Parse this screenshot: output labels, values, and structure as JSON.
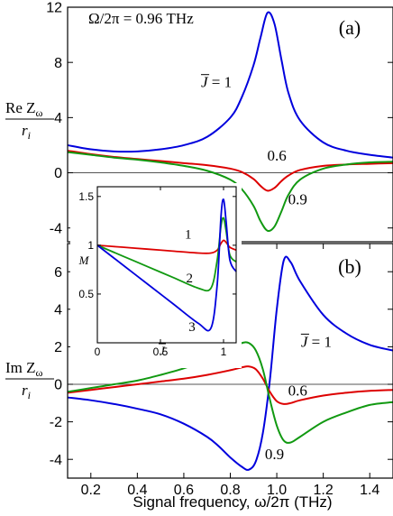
{
  "chart_data": [
    {
      "panel": "a",
      "type": "line",
      "panel_label": "(a)",
      "annotation": "Ω/2π = 0.96 THz",
      "ylabel_top": "Re Z",
      "ylabel_sub": "ω",
      "ylabel_bottom": "r",
      "ylabel_bottom_sub": "i",
      "xlim": [
        0.1,
        1.5
      ],
      "ylim": [
        -5,
        12
      ],
      "yticks": [
        -4,
        0,
        4,
        8,
        12
      ],
      "zero_line": true,
      "series": [
        {
          "name": "J̄ = 1",
          "color": "#0000dd",
          "x": [
            0.1,
            0.2,
            0.3,
            0.4,
            0.5,
            0.6,
            0.7,
            0.8,
            0.85,
            0.9,
            0.93,
            0.96,
            0.99,
            1.02,
            1.05,
            1.1,
            1.2,
            1.3,
            1.4,
            1.5
          ],
          "y": [
            2.0,
            1.7,
            1.55,
            1.55,
            1.7,
            2.0,
            2.6,
            4.0,
            5.5,
            7.8,
            9.8,
            11.6,
            10.8,
            8.2,
            5.8,
            3.8,
            2.2,
            1.6,
            1.3,
            1.1
          ]
        },
        {
          "name": "0.6",
          "color": "#dd0000",
          "x": [
            0.1,
            0.2,
            0.3,
            0.4,
            0.5,
            0.6,
            0.7,
            0.8,
            0.85,
            0.9,
            0.93,
            0.96,
            0.99,
            1.02,
            1.05,
            1.1,
            1.2,
            1.3,
            1.4,
            1.5
          ],
          "y": [
            1.6,
            1.35,
            1.15,
            1.0,
            0.85,
            0.7,
            0.55,
            0.3,
            0.05,
            -0.45,
            -0.95,
            -1.3,
            -1.1,
            -0.6,
            -0.2,
            0.2,
            0.5,
            0.6,
            0.65,
            0.7
          ]
        },
        {
          "name": "0.9",
          "color": "#119911",
          "x": [
            0.1,
            0.2,
            0.3,
            0.4,
            0.5,
            0.6,
            0.7,
            0.8,
            0.85,
            0.9,
            0.93,
            0.96,
            0.99,
            1.02,
            1.05,
            1.1,
            1.2,
            1.3,
            1.4,
            1.5
          ],
          "y": [
            1.5,
            1.3,
            1.1,
            0.95,
            0.75,
            0.5,
            0.15,
            -0.5,
            -1.2,
            -2.4,
            -3.5,
            -4.2,
            -3.9,
            -2.8,
            -1.6,
            -0.5,
            0.3,
            0.6,
            0.75,
            0.8
          ]
        }
      ],
      "curve_labels": [
        {
          "text": "J = 1",
          "bar": true,
          "x": 0.74,
          "y": 6.2
        },
        {
          "text": "0.6",
          "x": 1.0,
          "y": 0.9
        },
        {
          "text": "0.9",
          "x": 1.09,
          "y": -2.3
        }
      ]
    },
    {
      "panel": "b",
      "type": "line",
      "panel_label": "(b)",
      "xlabel": "Signal frequency, ω/2π (THz)",
      "ylabel_top": "Im Z",
      "ylabel_sub": "ω",
      "ylabel_bottom": "r",
      "ylabel_bottom_sub": "i",
      "xlim": [
        0.1,
        1.5
      ],
      "ylim": [
        -5,
        7.5
      ],
      "yticks": [
        -4,
        -2,
        0,
        2,
        4,
        6
      ],
      "xticks": [
        0.2,
        0.4,
        0.6,
        0.8,
        1.0,
        1.2,
        1.4
      ],
      "zero_line": true,
      "series": [
        {
          "name": "J̄ = 1",
          "color": "#0000dd",
          "x": [
            0.1,
            0.2,
            0.3,
            0.4,
            0.5,
            0.6,
            0.7,
            0.75,
            0.8,
            0.85,
            0.88,
            0.91,
            0.94,
            0.97,
            1.0,
            1.03,
            1.06,
            1.1,
            1.2,
            1.3,
            1.4,
            1.5
          ],
          "y": [
            -0.7,
            -0.85,
            -1.05,
            -1.3,
            -1.6,
            -2.1,
            -2.8,
            -3.3,
            -3.9,
            -4.4,
            -4.55,
            -4.1,
            -2.6,
            0.2,
            4.0,
            6.6,
            6.5,
            5.5,
            3.7,
            2.7,
            2.1,
            1.8
          ]
        },
        {
          "name": "0.6",
          "color": "#dd0000",
          "x": [
            0.1,
            0.2,
            0.3,
            0.4,
            0.5,
            0.6,
            0.7,
            0.8,
            0.85,
            0.88,
            0.91,
            0.94,
            0.97,
            1.0,
            1.03,
            1.06,
            1.1,
            1.2,
            1.3,
            1.4,
            1.5
          ],
          "y": [
            -0.45,
            -0.3,
            -0.15,
            0.0,
            0.15,
            0.3,
            0.5,
            0.75,
            0.9,
            0.95,
            0.8,
            0.3,
            -0.4,
            -0.9,
            -1.05,
            -1.0,
            -0.85,
            -0.6,
            -0.45,
            -0.35,
            -0.3
          ]
        },
        {
          "name": "0.9",
          "color": "#119911",
          "x": [
            0.1,
            0.2,
            0.3,
            0.4,
            0.5,
            0.6,
            0.7,
            0.8,
            0.85,
            0.88,
            0.91,
            0.94,
            0.97,
            1.0,
            1.03,
            1.06,
            1.1,
            1.2,
            1.3,
            1.4,
            1.5
          ],
          "y": [
            -0.4,
            -0.2,
            0.0,
            0.2,
            0.5,
            0.85,
            1.3,
            1.9,
            2.2,
            2.2,
            1.8,
            0.8,
            -0.8,
            -2.2,
            -3.0,
            -3.1,
            -2.8,
            -2.0,
            -1.5,
            -1.1,
            -0.95
          ]
        }
      ],
      "curve_labels": [
        {
          "text": "J = 1",
          "bar": true,
          "x": 1.17,
          "y": 2.0
        },
        {
          "text": "0.6",
          "x": 1.09,
          "y": -0.6
        },
        {
          "text": "0.9",
          "x": 0.99,
          "y": -4.0
        }
      ]
    },
    {
      "panel": "inset",
      "type": "line",
      "ylabel": "M",
      "xlabel": "J",
      "xlabel_bar": true,
      "xlim": [
        0,
        1.1
      ],
      "ylim": [
        0,
        1.6
      ],
      "xticks": [
        0,
        0.5,
        1
      ],
      "xtick_labels": [
        "0",
        "0.5",
        "1"
      ],
      "yticks": [
        0.5,
        1,
        1.5
      ],
      "ytick_labels": [
        "0.5",
        "1",
        "1.5"
      ],
      "series": [
        {
          "name": "1",
          "color": "#dd0000",
          "x": [
            0,
            0.2,
            0.4,
            0.6,
            0.8,
            0.9,
            0.95,
            0.98,
            1.0,
            1.02,
            1.05,
            1.1
          ],
          "y": [
            1.0,
            0.98,
            0.96,
            0.94,
            0.92,
            0.92,
            0.95,
            1.02,
            1.05,
            1.03,
            0.98,
            0.95
          ]
        },
        {
          "name": "2",
          "color": "#119911",
          "x": [
            0,
            0.2,
            0.4,
            0.6,
            0.8,
            0.9,
            0.95,
            0.98,
            1.0,
            1.02,
            1.05,
            1.1
          ],
          "y": [
            1.0,
            0.89,
            0.78,
            0.67,
            0.56,
            0.56,
            0.85,
            1.2,
            1.28,
            1.15,
            0.9,
            0.83
          ]
        },
        {
          "name": "3",
          "color": "#0000dd",
          "x": [
            0,
            0.2,
            0.4,
            0.6,
            0.8,
            0.9,
            0.95,
            0.98,
            1.0,
            1.02,
            1.05,
            1.1
          ],
          "y": [
            1.0,
            0.8,
            0.6,
            0.4,
            0.2,
            0.15,
            0.6,
            1.3,
            1.47,
            1.25,
            0.85,
            0.73
          ]
        }
      ],
      "curve_labels": [
        {
          "text": "1",
          "x": 0.72,
          "y": 1.07
        },
        {
          "text": "2",
          "x": 0.73,
          "y": 0.62
        },
        {
          "text": "3",
          "x": 0.75,
          "y": 0.12
        }
      ]
    }
  ]
}
